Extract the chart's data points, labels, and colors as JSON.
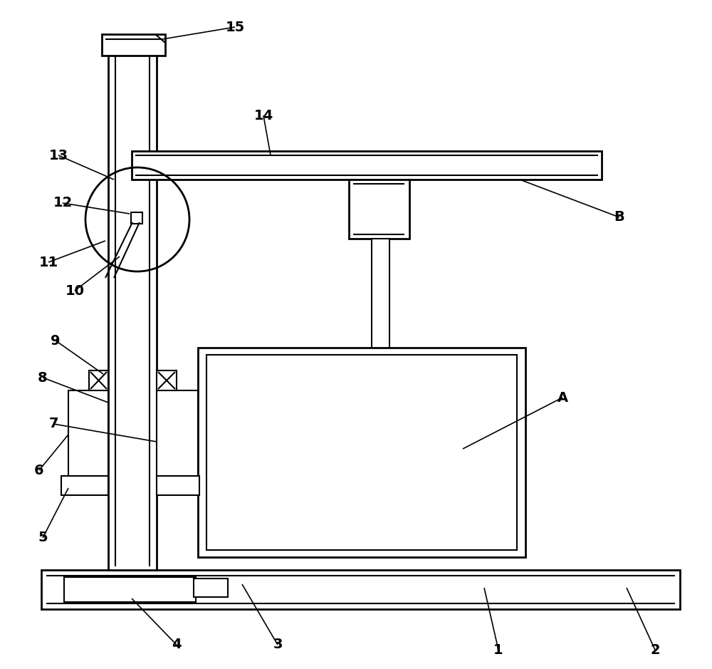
{
  "bg_color": "#ffffff",
  "line_color": "#000000",
  "lw_main": 1.5,
  "lw_thick": 2.0,
  "figsize": [
    10.0,
    9.39
  ],
  "dpi": 100
}
